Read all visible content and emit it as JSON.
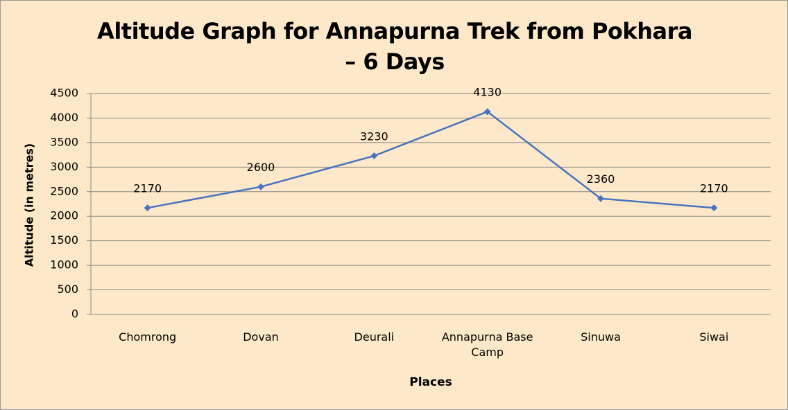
{
  "chart_data": {
    "type": "line",
    "title": "Altitude Graph for Annapurna Trek from Pokhara – 6 Days",
    "x_label": "Places",
    "y_label": "Altitude (in metres)",
    "categories": [
      "Chomrong",
      "Dovan",
      "Deurali",
      "Annapurna Base Camp",
      "Sinuwa",
      "Siwai"
    ],
    "values": [
      2170,
      2600,
      3230,
      4130,
      2360,
      2170
    ],
    "color": "#4a72c0",
    "ylim": [
      0,
      4500
    ],
    "yticks": [
      0,
      500,
      1000,
      1500,
      2000,
      2500,
      3000,
      3500,
      4000,
      4500
    ],
    "grid": true
  }
}
